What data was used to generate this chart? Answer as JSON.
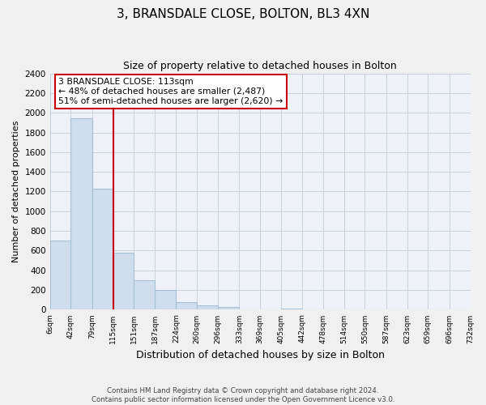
{
  "title": "3, BRANSDALE CLOSE, BOLTON, BL3 4XN",
  "subtitle": "Size of property relative to detached houses in Bolton",
  "xlabel": "Distribution of detached houses by size in Bolton",
  "ylabel": "Number of detached properties",
  "bin_edges": [
    6,
    42,
    79,
    115,
    151,
    187,
    224,
    260,
    296,
    333,
    369,
    405,
    442,
    478,
    514,
    550,
    587,
    623,
    659,
    696,
    732
  ],
  "bin_counts": [
    700,
    1940,
    1230,
    580,
    300,
    200,
    80,
    45,
    30,
    5,
    0,
    15,
    5,
    0,
    0,
    0,
    0,
    0,
    0,
    0
  ],
  "bar_color": "#cfdded",
  "bar_edgecolor": "#a8c0d6",
  "vline_x": 115,
  "vline_color": "#cc0000",
  "ylim": [
    0,
    2400
  ],
  "yticks": [
    0,
    200,
    400,
    600,
    800,
    1000,
    1200,
    1400,
    1600,
    1800,
    2000,
    2200,
    2400
  ],
  "annotation_title": "3 BRANSDALE CLOSE: 113sqm",
  "annotation_line1": "← 48% of detached houses are smaller (2,487)",
  "annotation_line2": "51% of semi-detached houses are larger (2,620) →",
  "annotation_box_facecolor": "#ffffff",
  "annotation_box_edgecolor": "#cc0000",
  "footer_line1": "Contains HM Land Registry data © Crown copyright and database right 2024.",
  "footer_line2": "Contains public sector information licensed under the Open Government Licence v3.0.",
  "tick_labels": [
    "6sqm",
    "42sqm",
    "79sqm",
    "115sqm",
    "151sqm",
    "187sqm",
    "224sqm",
    "260sqm",
    "296sqm",
    "333sqm",
    "369sqm",
    "405sqm",
    "442sqm",
    "478sqm",
    "514sqm",
    "550sqm",
    "587sqm",
    "623sqm",
    "659sqm",
    "696sqm",
    "732sqm"
  ],
  "background_color": "#f0f0f0",
  "plot_background_color": "#eef2f8",
  "grid_color": "#c8d0dc"
}
